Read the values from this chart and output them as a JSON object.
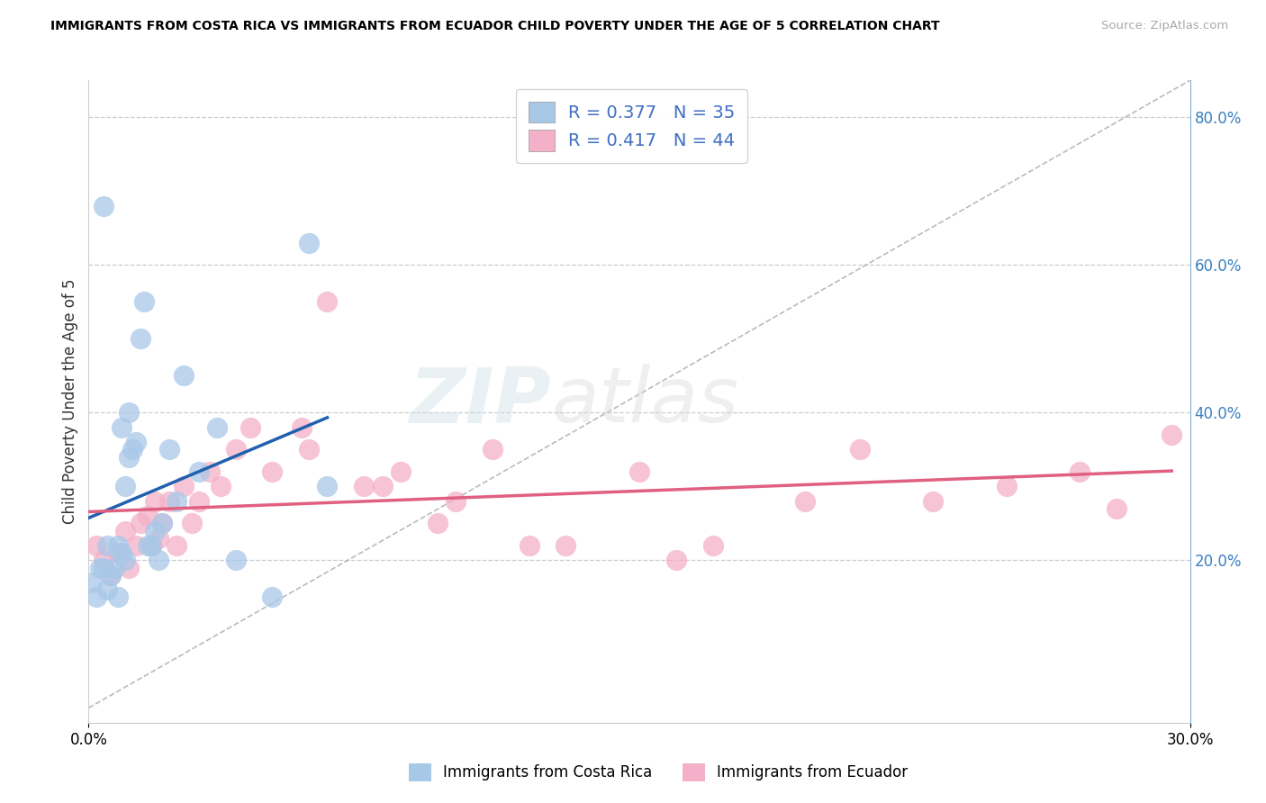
{
  "title": "IMMIGRANTS FROM COSTA RICA VS IMMIGRANTS FROM ECUADOR CHILD POVERTY UNDER THE AGE OF 5 CORRELATION CHART",
  "source": "Source: ZipAtlas.com",
  "ylabel": "Child Poverty Under the Age of 5",
  "legend_blue_label": "Immigrants from Costa Rica",
  "legend_pink_label": "Immigrants from Ecuador",
  "legend_blue_R": "0.377",
  "legend_blue_N": "35",
  "legend_pink_R": "0.417",
  "legend_pink_N": "44",
  "watermark_left": "ZIP",
  "watermark_right": "atlas",
  "blue_color": "#a8c8e8",
  "pink_color": "#f4b0c8",
  "blue_line_color": "#2060b0",
  "pink_line_color": "#e06080",
  "legend_text_color": "#4472c4",
  "background_color": "#ffffff",
  "xlim": [
    0.0,
    0.3
  ],
  "ylim": [
    -0.02,
    0.85
  ],
  "grid_yticks": [
    0.2,
    0.4,
    0.6,
    0.8
  ],
  "grid_color": "#cccccc",
  "diagonal_color": "#aaaaaa",
  "costa_rica_x": [
    0.001,
    0.002,
    0.003,
    0.004,
    0.005,
    0.005,
    0.006,
    0.007,
    0.008,
    0.008,
    0.009,
    0.009,
    0.01,
    0.01,
    0.011,
    0.011,
    0.012,
    0.013,
    0.014,
    0.015,
    0.016,
    0.017,
    0.018,
    0.019,
    0.02,
    0.022,
    0.024,
    0.026,
    0.03,
    0.035,
    0.04,
    0.05,
    0.06,
    0.065,
    0.004
  ],
  "costa_rica_y": [
    0.17,
    0.15,
    0.19,
    0.19,
    0.16,
    0.22,
    0.18,
    0.19,
    0.22,
    0.15,
    0.21,
    0.38,
    0.2,
    0.3,
    0.34,
    0.4,
    0.35,
    0.36,
    0.5,
    0.55,
    0.22,
    0.22,
    0.24,
    0.2,
    0.25,
    0.35,
    0.28,
    0.45,
    0.32,
    0.38,
    0.2,
    0.15,
    0.63,
    0.3,
    0.68
  ],
  "ecuador_x": [
    0.002,
    0.004,
    0.006,
    0.008,
    0.01,
    0.011,
    0.013,
    0.014,
    0.016,
    0.017,
    0.018,
    0.019,
    0.02,
    0.022,
    0.024,
    0.026,
    0.028,
    0.03,
    0.033,
    0.036,
    0.04,
    0.044,
    0.05,
    0.058,
    0.065,
    0.075,
    0.085,
    0.095,
    0.11,
    0.13,
    0.15,
    0.17,
    0.195,
    0.21,
    0.23,
    0.25,
    0.27,
    0.28,
    0.295,
    0.06,
    0.08,
    0.1,
    0.12,
    0.16
  ],
  "ecuador_y": [
    0.22,
    0.2,
    0.18,
    0.21,
    0.24,
    0.19,
    0.22,
    0.25,
    0.26,
    0.22,
    0.28,
    0.23,
    0.25,
    0.28,
    0.22,
    0.3,
    0.25,
    0.28,
    0.32,
    0.3,
    0.35,
    0.38,
    0.32,
    0.38,
    0.55,
    0.3,
    0.32,
    0.25,
    0.35,
    0.22,
    0.32,
    0.22,
    0.28,
    0.35,
    0.28,
    0.3,
    0.32,
    0.27,
    0.37,
    0.35,
    0.3,
    0.28,
    0.22,
    0.2
  ]
}
